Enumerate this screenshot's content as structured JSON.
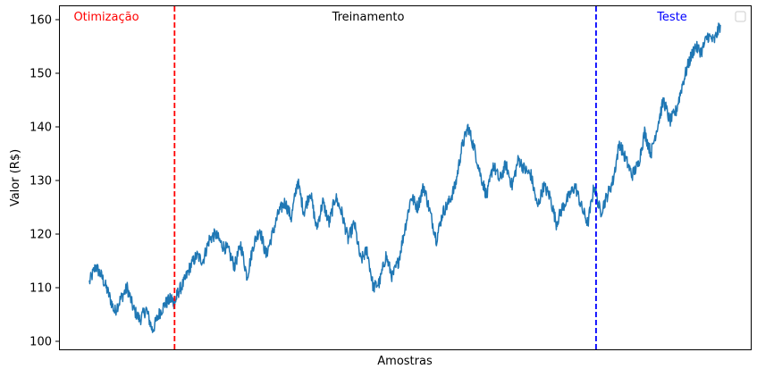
{
  "chart_data": {
    "type": "line",
    "title": "",
    "xlabel": "Amostras",
    "ylabel": "Valor (R$)",
    "ylim": [
      98.5,
      162.5
    ],
    "yticks": [
      100,
      110,
      120,
      130,
      140,
      150,
      160
    ],
    "xticks": [],
    "grid": false,
    "legend": "top-right (empty)",
    "colors": {
      "series": "#1f77b4",
      "optimization": "#ff0000",
      "test": "#0000ff",
      "training": "#000000"
    },
    "regions": [
      {
        "label": "Otimização",
        "color": "#ff0000"
      },
      {
        "label": "Treinamento",
        "color": "#000000"
      },
      {
        "label": "Teste",
        "color": "#0000ff"
      }
    ],
    "boundaries": [
      {
        "name": "optimization-end",
        "x": 0.135,
        "color": "#ff0000",
        "style": "dashed"
      },
      {
        "name": "test-start",
        "x": 0.803,
        "color": "#0000ff",
        "style": "dashed"
      }
    ],
    "x_domain": [
      0,
      1
    ],
    "series": [
      {
        "x": [
          0,
          0.01,
          0.02,
          0.03,
          0.04,
          0.05,
          0.06,
          0.07,
          0.08,
          0.09,
          0.1,
          0.11,
          0.12,
          0.13,
          0.135,
          0.14,
          0.15,
          0.16,
          0.17,
          0.18,
          0.19,
          0.2,
          0.21,
          0.22,
          0.23,
          0.24,
          0.25,
          0.26,
          0.27,
          0.28,
          0.29,
          0.3,
          0.31,
          0.32,
          0.33,
          0.34,
          0.35,
          0.36,
          0.37,
          0.38,
          0.39,
          0.4,
          0.41,
          0.42,
          0.43,
          0.44,
          0.45,
          0.46,
          0.47,
          0.48,
          0.49,
          0.5,
          0.51,
          0.52,
          0.53,
          0.54,
          0.55,
          0.56,
          0.57,
          0.58,
          0.59,
          0.6,
          0.61,
          0.62,
          0.63,
          0.64,
          0.65,
          0.66,
          0.67,
          0.68,
          0.69,
          0.7,
          0.71,
          0.72,
          0.73,
          0.74,
          0.75,
          0.76,
          0.77,
          0.78,
          0.79,
          0.8,
          0.81,
          0.82,
          0.83,
          0.84,
          0.85,
          0.86,
          0.87,
          0.88,
          0.89,
          0.9,
          0.91,
          0.92,
          0.93,
          0.94,
          0.95,
          0.96,
          0.97,
          0.98,
          0.99,
          1.0
        ],
        "values": [
          111,
          114,
          112,
          109,
          105.5,
          108,
          110,
          106,
          104,
          106,
          102,
          105,
          107,
          108,
          107,
          109,
          111,
          114,
          116,
          115,
          119,
          120,
          118,
          117,
          114,
          118,
          112,
          118,
          121,
          116,
          120,
          124,
          126,
          123,
          130,
          124,
          128,
          121,
          126,
          122,
          127,
          124,
          119,
          122,
          115,
          117,
          110,
          111,
          116,
          112,
          115,
          121,
          127,
          125,
          129,
          124,
          119,
          124,
          126,
          129,
          136,
          140,
          136,
          131,
          127,
          133,
          130,
          133,
          129,
          134,
          132,
          131,
          125,
          129,
          127,
          122,
          125,
          127,
          129,
          125,
          122,
          129,
          124,
          127,
          130,
          137,
          134,
          131,
          133,
          139,
          135,
          140,
          145,
          141,
          143,
          148,
          152,
          155,
          154,
          157,
          156,
          159
        ]
      }
    ]
  }
}
